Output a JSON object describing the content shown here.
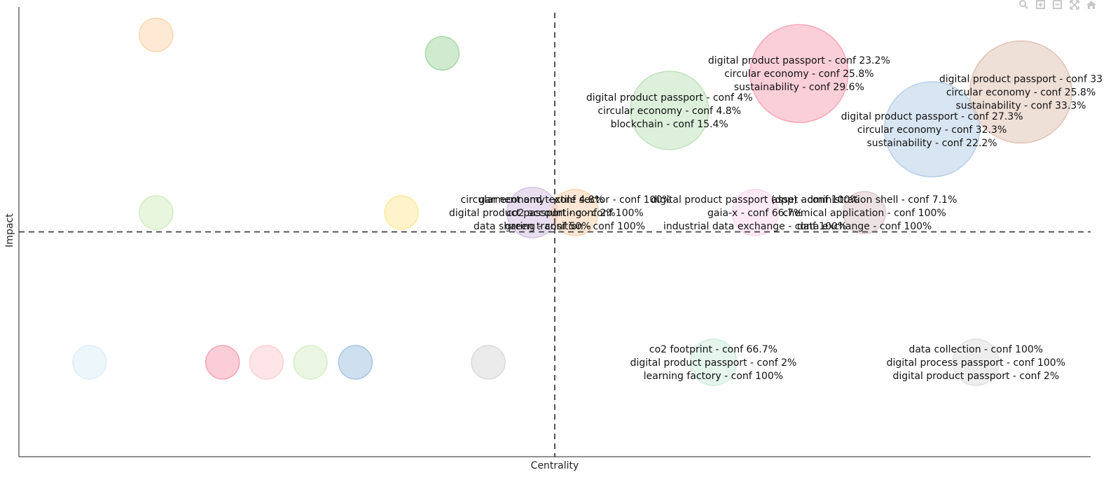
{
  "toolbar": {
    "icons": [
      "zoom-icon",
      "zoom-in-icon",
      "zoom-out-icon",
      "autoscale-icon",
      "reset-axes-icon"
    ]
  },
  "chart_data": {
    "type": "scatter",
    "subtype": "bubble",
    "title": "",
    "xlabel": "Centrality",
    "ylabel": "Impact",
    "xlim": [
      0,
      1
    ],
    "ylim": [
      0,
      1
    ],
    "grid": false,
    "reference_lines": {
      "x": 0.5,
      "y": 0.5,
      "style": "dashed"
    },
    "points": [
      {
        "x": 0.128,
        "y": 0.938,
        "r": 24,
        "color": "#fdd8b0",
        "labels": []
      },
      {
        "x": 0.395,
        "y": 0.897,
        "r": 24,
        "color": "#a8d8a8",
        "labels": []
      },
      {
        "x": 0.128,
        "y": 0.543,
        "r": 24,
        "color": "#d4eec0",
        "labels": []
      },
      {
        "x": 0.357,
        "y": 0.543,
        "r": 24,
        "color": "#feea9e",
        "labels": []
      },
      {
        "x": 0.066,
        "y": 0.21,
        "r": 24,
        "color": "#deeef8",
        "labels": []
      },
      {
        "x": 0.19,
        "y": 0.21,
        "r": 24,
        "color": "#f7a4b4",
        "labels": []
      },
      {
        "x": 0.231,
        "y": 0.21,
        "r": 24,
        "color": "#fdd0d4",
        "labels": []
      },
      {
        "x": 0.272,
        "y": 0.21,
        "r": 24,
        "color": "#d8eec8",
        "labels": []
      },
      {
        "x": 0.314,
        "y": 0.21,
        "r": 24,
        "color": "#a6c6e4",
        "labels": []
      },
      {
        "x": 0.438,
        "y": 0.21,
        "r": 24,
        "color": "#dadada",
        "labels": []
      },
      {
        "x": 0.607,
        "y": 0.77,
        "r": 56,
        "color": "#bfe3bd",
        "labels": [
          "digital product passport - conf 4%",
          "circular economy - conf 4.8%",
          "blockchain - conf 15.4%"
        ]
      },
      {
        "x": 0.728,
        "y": 0.852,
        "r": 70,
        "color": "#f7a8b8",
        "labels": [
          "digital product passport - conf 23.2%",
          "circular economy - conf 25.8%",
          "sustainability - conf 29.6%"
        ]
      },
      {
        "x": 0.852,
        "y": 0.728,
        "r": 68,
        "color": "#b8d0e8",
        "labels": [
          "digital product passport - conf 27.3%",
          "circular economy - conf 32.3%",
          "sustainability - conf 22.2%"
        ]
      },
      {
        "x": 0.935,
        "y": 0.811,
        "r": 73,
        "color": "#e0c4b6",
        "labels": [
          "digital product passport - conf 33",
          "circular economy - conf 25.8%",
          "sustainability - conf 33.3%"
        ]
      },
      {
        "x": 0.479,
        "y": 0.543,
        "r": 36,
        "color": "#d6c2e4",
        "labels": [
          "circular economy - conf 4.8%",
          "digital product passport - conf 2%",
          "data sharing - conf 50%"
        ]
      },
      {
        "x": 0.519,
        "y": 0.543,
        "r": 33,
        "color": "#fcd4b0",
        "labels": [
          "garment and textile sector - conf 100%",
          "co2 accounting - conf 100%",
          "green transition - conf 100%"
        ]
      },
      {
        "x": 0.687,
        "y": 0.543,
        "r": 33,
        "color": "#fcd8ec",
        "labels": [
          "digital product passport (dpp) - conf 100%",
          "gaia-x - conf 66.7%",
          "industrial data exchange - conf 100%"
        ]
      },
      {
        "x": 0.789,
        "y": 0.543,
        "r": 30,
        "color": "#dcc8cc",
        "labels": [
          "asset administration shell - conf 7.1%",
          "chemical application - conf 100%",
          "data exchange - conf 100%"
        ]
      },
      {
        "x": 0.648,
        "y": 0.21,
        "r": 33,
        "color": "#cfeede",
        "labels": [
          "co2 footprint - conf 66.7%",
          "digital product passport - conf 2%",
          "learning factory - conf 100%"
        ]
      },
      {
        "x": 0.893,
        "y": 0.21,
        "r": 33,
        "color": "#e0e0e0",
        "labels": [
          "data collection - conf 100%",
          "digital process passport - conf 100%",
          "digital product passport - conf 2%"
        ]
      }
    ]
  }
}
